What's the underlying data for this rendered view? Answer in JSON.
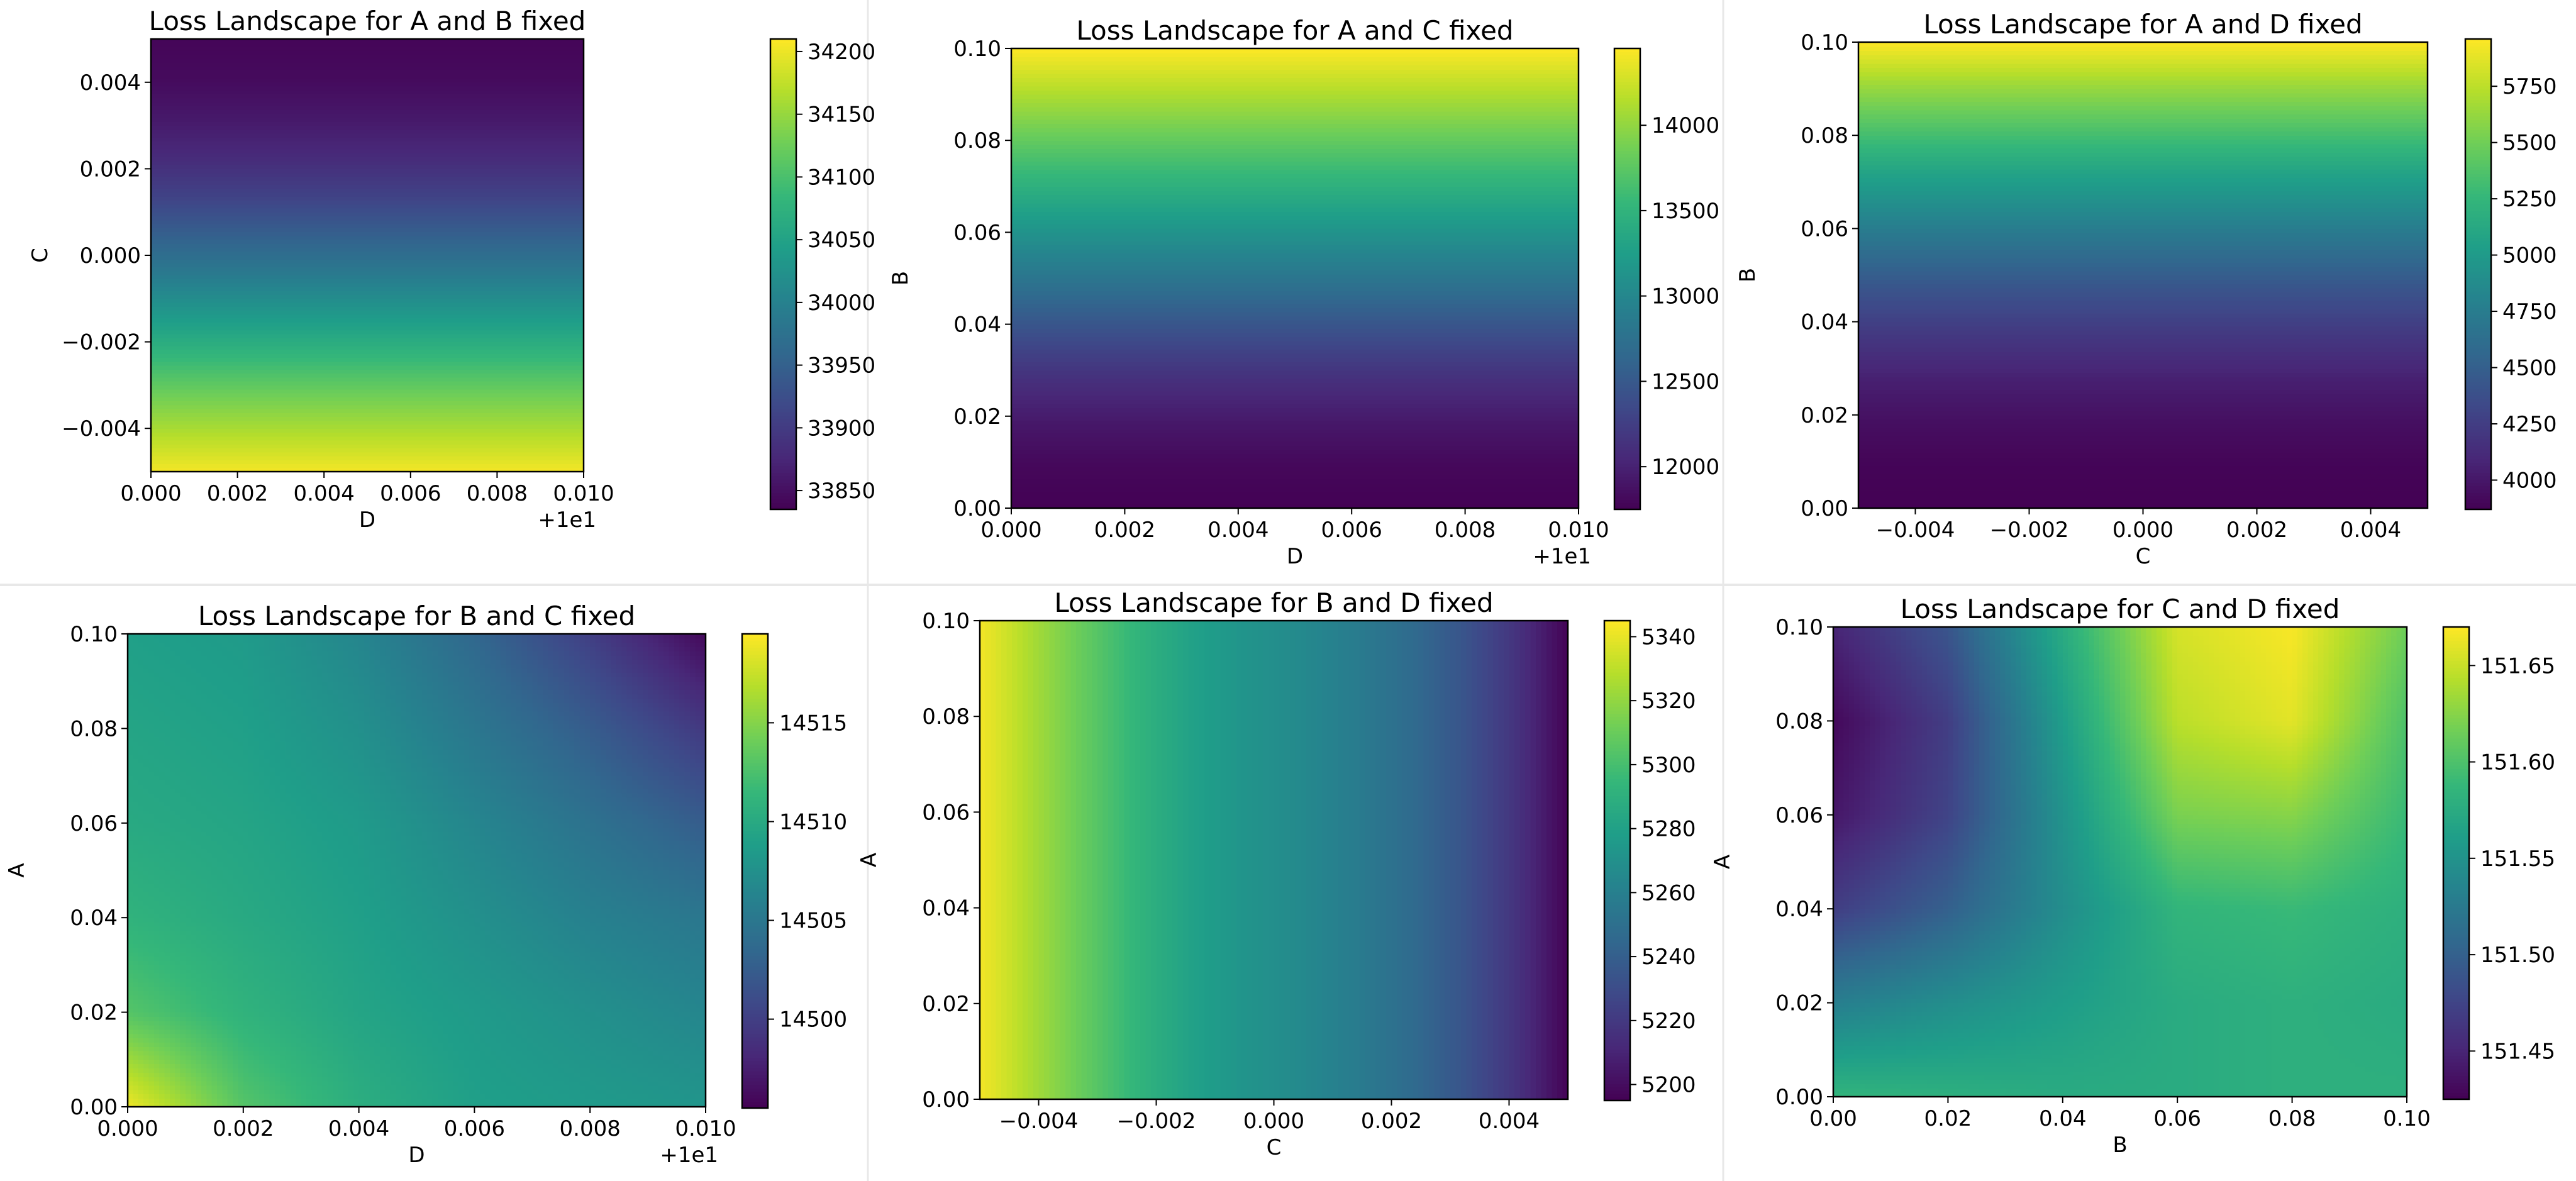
{
  "colors": {
    "background": "#ffffff",
    "axes_edge": "#000000",
    "panel_separator": "#e8e8e8",
    "colormap": "viridis",
    "viridis_stops": [
      "#440154",
      "#482878",
      "#3e4989",
      "#31688e",
      "#26828e",
      "#1f9e89",
      "#35b779",
      "#6ece58",
      "#b5de2b",
      "#fde725"
    ]
  },
  "chart_data": [
    {
      "type": "heatmap",
      "title": "Loss Landscape for A and B fixed",
      "xlabel": "D",
      "ylabel": "C",
      "x_offset_label": "+1e1",
      "xlim": [
        0.0,
        0.01
      ],
      "ylim": [
        -0.005,
        0.005
      ],
      "x_ticks": [
        0.0,
        0.002,
        0.004,
        0.006,
        0.008,
        0.01
      ],
      "x_tick_labels": [
        "0.000",
        "0.002",
        "0.004",
        "0.006",
        "0.008",
        "0.010"
      ],
      "y_ticks": [
        -0.004,
        -0.002,
        0.0,
        0.002,
        0.004
      ],
      "y_tick_labels": [
        "−0.004",
        "−0.002",
        "0.000",
        "0.002",
        "0.004"
      ],
      "colorbar": {
        "vmin": 33835,
        "vmax": 34210,
        "ticks": [
          33850,
          33900,
          33950,
          34000,
          34050,
          34100,
          34150,
          34200
        ],
        "tick_labels": [
          "33850",
          "33900",
          "33950",
          "34000",
          "34050",
          "34100",
          "34150",
          "34200"
        ]
      },
      "grid": {
        "orientation": "rows_bottom_to_top",
        "values": [
          34205,
          34165,
          34125,
          34080,
          34035,
          33990,
          33950,
          33910,
          33880,
          33860,
          33845,
          33840
        ]
      }
    },
    {
      "type": "heatmap",
      "title": "Loss Landscape for A and C fixed",
      "xlabel": "D",
      "ylabel": "B",
      "x_offset_label": "+1e1",
      "xlim": [
        0.0,
        0.01
      ],
      "ylim": [
        0.0,
        0.1
      ],
      "x_ticks": [
        0.0,
        0.002,
        0.004,
        0.006,
        0.008,
        0.01
      ],
      "x_tick_labels": [
        "0.000",
        "0.002",
        "0.004",
        "0.006",
        "0.008",
        "0.010"
      ],
      "y_ticks": [
        0.0,
        0.02,
        0.04,
        0.06,
        0.08,
        0.1
      ],
      "y_tick_labels": [
        "0.00",
        "0.02",
        "0.04",
        "0.06",
        "0.08",
        "0.10"
      ],
      "colorbar": {
        "vmin": 11750,
        "vmax": 14450,
        "ticks": [
          12000,
          12500,
          13000,
          13500,
          14000
        ],
        "tick_labels": [
          "12000",
          "12500",
          "13000",
          "13500",
          "14000"
        ]
      },
      "grid": {
        "orientation": "rows_bottom_to_top",
        "values": [
          11750,
          11800,
          11920,
          12100,
          12350,
          12650,
          12950,
          13250,
          13550,
          13850,
          14150,
          14450
        ]
      }
    },
    {
      "type": "heatmap",
      "title": "Loss Landscape for A and D fixed",
      "xlabel": "C",
      "ylabel": "B",
      "x_offset_label": "",
      "xlim": [
        -0.005,
        0.005
      ],
      "ylim": [
        0.0,
        0.1
      ],
      "x_ticks": [
        -0.004,
        -0.002,
        0.0,
        0.002,
        0.004
      ],
      "x_tick_labels": [
        "−0.004",
        "−0.002",
        "0.000",
        "0.002",
        "0.004"
      ],
      "y_ticks": [
        0.0,
        0.02,
        0.04,
        0.06,
        0.08,
        0.1
      ],
      "y_tick_labels": [
        "0.00",
        "0.02",
        "0.04",
        "0.06",
        "0.08",
        "0.10"
      ],
      "colorbar": {
        "vmin": 3870,
        "vmax": 5960,
        "ticks": [
          4000,
          4250,
          4500,
          4750,
          5000,
          5250,
          5500,
          5750
        ],
        "tick_labels": [
          "4000",
          "4250",
          "4500",
          "4750",
          "5000",
          "5250",
          "5500",
          "5750"
        ]
      },
      "grid": {
        "orientation": "rows_bottom_to_top",
        "values": [
          3870,
          3890,
          3950,
          4050,
          4200,
          4380,
          4600,
          4850,
          5100,
          5380,
          5650,
          5960
        ]
      }
    },
    {
      "type": "heatmap",
      "title": "Loss Landscape for B and C fixed",
      "xlabel": "D",
      "ylabel": "A",
      "x_offset_label": "+1e1",
      "xlim": [
        0.0,
        0.01
      ],
      "ylim": [
        0.0,
        0.1
      ],
      "x_ticks": [
        0.0,
        0.002,
        0.004,
        0.006,
        0.008,
        0.01
      ],
      "x_tick_labels": [
        "0.000",
        "0.002",
        "0.004",
        "0.006",
        "0.008",
        "0.010"
      ],
      "y_ticks": [
        0.0,
        0.02,
        0.04,
        0.06,
        0.08,
        0.1
      ],
      "y_tick_labels": [
        "0.00",
        "0.02",
        "0.04",
        "0.06",
        "0.08",
        "0.10"
      ],
      "colorbar": {
        "vmin": 14495.5,
        "vmax": 14519.5,
        "ticks": [
          14500,
          14505,
          14510,
          14515
        ],
        "tick_labels": [
          "14500",
          "14505",
          "14510",
          "14515"
        ]
      },
      "grid": {
        "orientation": "rows_bottom_to_top",
        "x": [
          0.0,
          0.002,
          0.004,
          0.006,
          0.008,
          0.01
        ],
        "y": [
          0.0,
          0.02,
          0.04,
          0.06,
          0.08,
          0.1
        ],
        "values": [
          [
            14519,
            14513,
            14510.5,
            14509,
            14508.5,
            14508
          ],
          [
            14513,
            14511,
            14509.5,
            14508.5,
            14507.5,
            14506.5
          ],
          [
            14511,
            14510,
            14509,
            14507.5,
            14506,
            14505
          ],
          [
            14510,
            14509.5,
            14508.5,
            14506.5,
            14504.5,
            14502.5
          ],
          [
            14509.5,
            14509,
            14507.5,
            14505,
            14502.5,
            14499.5
          ],
          [
            14509,
            14508.5,
            14506.5,
            14503.5,
            14500,
            14496
          ]
        ]
      }
    },
    {
      "type": "heatmap",
      "title": "Loss Landscape for B and D fixed",
      "xlabel": "C",
      "ylabel": "A",
      "x_offset_label": "",
      "xlim": [
        -0.005,
        0.005
      ],
      "ylim": [
        0.0,
        0.1
      ],
      "x_ticks": [
        -0.004,
        -0.002,
        0.0,
        0.002,
        0.004
      ],
      "x_tick_labels": [
        "−0.004",
        "−0.002",
        "0.000",
        "0.002",
        "0.004"
      ],
      "y_ticks": [
        0.0,
        0.02,
        0.04,
        0.06,
        0.08,
        0.1
      ],
      "y_tick_labels": [
        "0.00",
        "0.02",
        "0.04",
        "0.06",
        "0.08",
        "0.10"
      ],
      "colorbar": {
        "vmin": 5195,
        "vmax": 5345,
        "ticks": [
          5200,
          5220,
          5240,
          5260,
          5280,
          5300,
          5320,
          5340
        ],
        "tick_labels": [
          "5200",
          "5220",
          "5240",
          "5260",
          "5280",
          "5300",
          "5320",
          "5340"
        ]
      },
      "grid": {
        "orientation": "columns_left_to_right",
        "values": [
          5343,
          5325,
          5308,
          5292,
          5280,
          5272,
          5266,
          5258,
          5248,
          5235,
          5218,
          5196
        ]
      }
    },
    {
      "type": "heatmap",
      "title": "Loss Landscape for C and D fixed",
      "xlabel": "B",
      "ylabel": "A",
      "x_offset_label": "",
      "xlim": [
        0.0,
        0.1
      ],
      "ylim": [
        0.0,
        0.1
      ],
      "x_ticks": [
        0.0,
        0.02,
        0.04,
        0.06,
        0.08,
        0.1
      ],
      "x_tick_labels": [
        "0.00",
        "0.02",
        "0.04",
        "0.06",
        "0.08",
        "0.10"
      ],
      "y_ticks": [
        0.0,
        0.02,
        0.04,
        0.06,
        0.08,
        0.1
      ],
      "y_tick_labels": [
        "0.00",
        "0.02",
        "0.04",
        "0.06",
        "0.08",
        "0.10"
      ],
      "colorbar": {
        "vmin": 151.425,
        "vmax": 151.67,
        "ticks": [
          151.45,
          151.5,
          151.55,
          151.6,
          151.65
        ],
        "tick_labels": [
          "151.45",
          "151.50",
          "151.55",
          "151.60",
          "151.65"
        ]
      },
      "grid": {
        "orientation": "rows_bottom_to_top",
        "x": [
          0.0,
          0.02,
          0.04,
          0.06,
          0.08,
          0.1
        ],
        "y": [
          0.0,
          0.02,
          0.04,
          0.06,
          0.08,
          0.1
        ],
        "values": [
          [
            151.585,
            151.58,
            151.575,
            151.575,
            151.58,
            151.58
          ],
          [
            151.53,
            151.545,
            151.56,
            151.575,
            151.58,
            151.575
          ],
          [
            151.47,
            151.5,
            151.545,
            151.585,
            151.59,
            151.58
          ],
          [
            151.44,
            151.475,
            151.55,
            151.62,
            151.625,
            151.59
          ],
          [
            151.43,
            151.47,
            151.56,
            151.645,
            151.66,
            151.6
          ],
          [
            151.45,
            151.49,
            151.575,
            151.655,
            151.668,
            151.615
          ]
        ]
      }
    }
  ]
}
